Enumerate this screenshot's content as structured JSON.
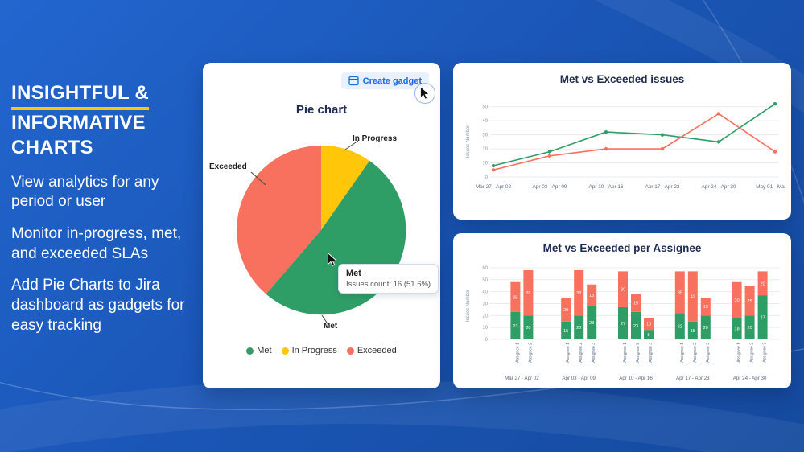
{
  "hero": {
    "title_line1": "INSIGHTFUL &",
    "title_line2": "INFORMATIVE",
    "title_line3": "CHARTS",
    "accent_color": "#ffc60a",
    "paragraphs": [
      "View analytics for any period or user",
      "Monitor in-progress, met, and exceeded SLAs",
      "Add Pie Charts to Jira dashboard as gadgets for easy tracking"
    ]
  },
  "pie_card": {
    "create_gadget_label": "Create gadget",
    "title": "Pie chart",
    "tooltip": {
      "title": "Met",
      "body": "Issues count: 16 (51.6%)"
    },
    "legend": [
      {
        "label": "Met",
        "color": "#2f9e66"
      },
      {
        "label": "In Progress",
        "color": "#ffc60a"
      },
      {
        "label": "Exceeded",
        "color": "#f8705e"
      }
    ]
  },
  "line_card": {
    "title": "Met vs Exceeded issues"
  },
  "bar_card": {
    "title": "Met vs Exceeded per Assignee"
  },
  "chart_data": [
    {
      "type": "pie",
      "title": "Pie chart",
      "slices": [
        {
          "label": "In Progress",
          "value": 3,
          "percent": 9.7,
          "color": "#ffc60a"
        },
        {
          "label": "Met",
          "value": 16,
          "percent": 51.6,
          "color": "#2f9e66"
        },
        {
          "label": "Exceeded",
          "value": 12,
          "percent": 38.7,
          "color": "#f8705e"
        }
      ],
      "annotation": "Met — Issues count: 16 (51.6%)",
      "legend_position": "bottom"
    },
    {
      "type": "line",
      "title": "Met vs Exceeded issues",
      "ylabel": "Issues Number",
      "categories": [
        "Mar 27 - Apr 02",
        "Apr 03 - Apr 09",
        "Apr 10 - Apr 16",
        "Apr 17 - Apr 23",
        "Apr 24 - Apr 30",
        "May 01 - May 07"
      ],
      "yticks": [
        0,
        10,
        20,
        30,
        40,
        50
      ],
      "ylim": [
        0,
        55
      ],
      "grid": true,
      "series": [
        {
          "name": "Met",
          "color": "#2f9e66",
          "values": [
            8,
            18,
            32,
            30,
            25,
            52
          ]
        },
        {
          "name": "Exceeded",
          "color": "#f8705e",
          "values": [
            5,
            15,
            20,
            20,
            45,
            18
          ]
        }
      ]
    },
    {
      "type": "bar",
      "title": "Met vs Exceeded per Assignee",
      "ylabel": "Issues Number",
      "yticks": [
        0,
        10,
        20,
        30,
        40,
        50,
        60
      ],
      "ylim": [
        0,
        62
      ],
      "stacked": true,
      "grid": true,
      "colors": {
        "met": "#2f9e66",
        "exceeded": "#f8705e"
      },
      "groups": [
        {
          "label": "Mar 27 - Apr 02",
          "bars": [
            {
              "assignee": "Assignee 1",
              "met": 23,
              "exceeded": 25
            },
            {
              "assignee": "Assignee 2",
              "met": 20,
              "exceeded": 38
            }
          ]
        },
        {
          "label": "Apr 03 - Apr 09",
          "bars": [
            {
              "assignee": "Assignee 1",
              "met": 15,
              "exceeded": 20
            },
            {
              "assignee": "Assignee 2",
              "met": 20,
              "exceeded": 38
            },
            {
              "assignee": "Assignee 3",
              "met": 28,
              "exceeded": 18
            }
          ]
        },
        {
          "label": "Apr 10 - Apr 16",
          "bars": [
            {
              "assignee": "Assignee 1",
              "met": 27,
              "exceeded": 30
            },
            {
              "assignee": "Assignee 2",
              "met": 23,
              "exceeded": 15
            },
            {
              "assignee": "Assignee 3",
              "met": 8,
              "exceeded": 10
            }
          ]
        },
        {
          "label": "Apr 17 - Apr 23",
          "bars": [
            {
              "assignee": "Assignee 1",
              "met": 22,
              "exceeded": 35
            },
            {
              "assignee": "Assignee 2",
              "met": 15,
              "exceeded": 42
            },
            {
              "assignee": "Assignee 3",
              "met": 20,
              "exceeded": 15
            }
          ]
        },
        {
          "label": "Apr 24 - Apr 30",
          "bars": [
            {
              "assignee": "Assignee 1",
              "met": 18,
              "exceeded": 30
            },
            {
              "assignee": "Assignee 2",
              "met": 20,
              "exceeded": 25
            },
            {
              "assignee": "Assignee 3",
              "met": 37,
              "exceeded": 20
            }
          ]
        }
      ]
    }
  ]
}
